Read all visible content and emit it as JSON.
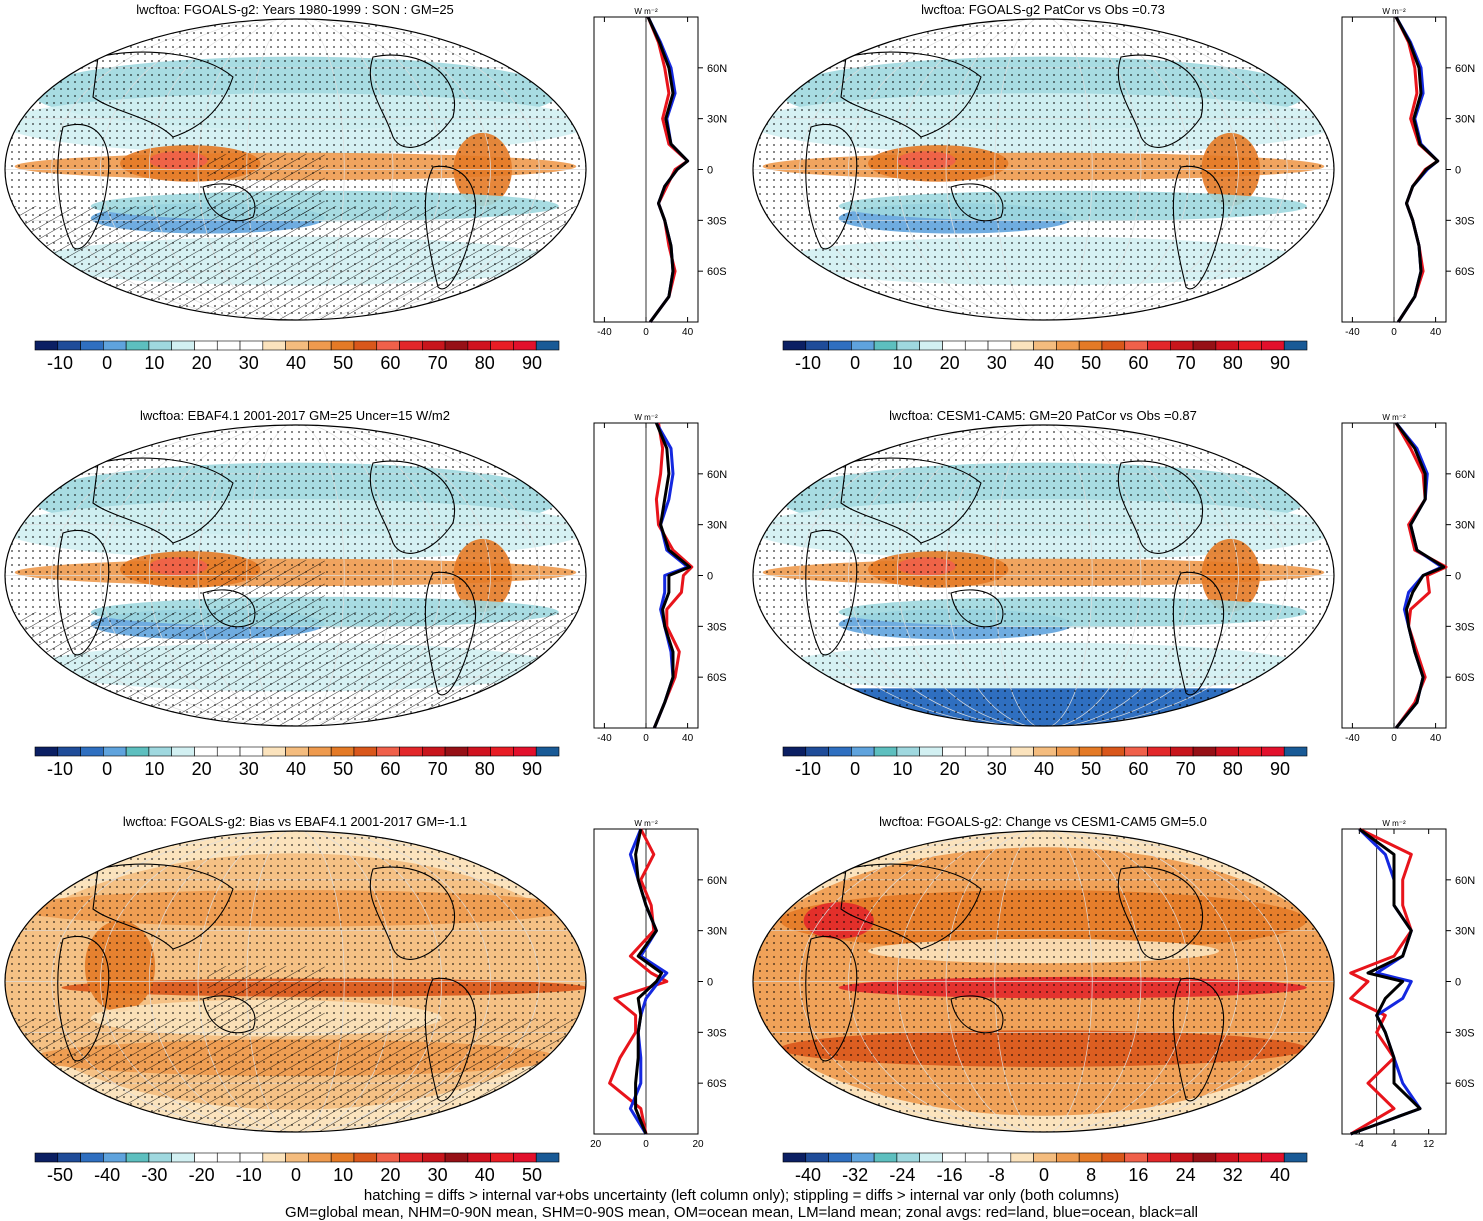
{
  "palettes": {
    "abs": [
      "#0b1f63",
      "#1f4c99",
      "#2f6fc0",
      "#5fa3dd",
      "#5dbfbf",
      "#9fd8df",
      "#d2f0f2",
      "#ffffff",
      "#ffffff",
      "#ffffff",
      "#fbe3bd",
      "#f4bc7e",
      "#ee9a4e",
      "#e47a26",
      "#d9571b",
      "#f0604a",
      "#e2272a",
      "#c8151c",
      "#961016",
      "#d0121f",
      "#e81d25",
      "#e2102c",
      "#195a96"
    ],
    "diff": [
      "#0b1f63",
      "#1f4c99",
      "#2f6fc0",
      "#5fa3dd",
      "#5dbfbf",
      "#9fd8df",
      "#d2f0f2",
      "#ffffff",
      "#ffffff",
      "#ffffff",
      "#fbe3bd",
      "#f4bc7e",
      "#ee9a4e",
      "#e47a26",
      "#d9571b",
      "#f0604a",
      "#e2272a",
      "#c8151c",
      "#961016",
      "#d0121f",
      "#e81d25",
      "#e2102c",
      "#195a96"
    ]
  },
  "line_colors": {
    "land": "#e8141b",
    "ocean": "#1428e0",
    "all": "#000000"
  },
  "zonal_unit": "W m⁻²",
  "lat_ticks": [
    "60N",
    "30N",
    "0",
    "30S",
    "60S"
  ],
  "footer": {
    "line1": "hatching = diffs > internal var+obs uncertainty (left column only); stippling = diffs > internal var only (both columns)",
    "line2": "GM=global mean, NHM=0-90N mean, SHM=0-90S mean, OM=ocean mean, LM=land mean; zonal avgs: red=land, blue=ocean, black=all"
  },
  "panels": [
    {
      "id": "p1",
      "title": "lwcftoa: FGOALS-g2: Years 1980-1999 : SON : GM=25",
      "map_type": "abs",
      "hatch": true,
      "colorbar_labels": [
        "-10",
        "0",
        "10",
        "20",
        "30",
        "40",
        "50",
        "60",
        "70",
        "80",
        "90"
      ],
      "zonal_ticks": [
        "-40",
        "0",
        "40"
      ]
    },
    {
      "id": "p2",
      "title": "lwcftoa: FGOALS-g2 PatCor vs Obs =0.73",
      "map_type": "abs",
      "hatch": false,
      "colorbar_labels": [
        "-10",
        "0",
        "10",
        "20",
        "30",
        "40",
        "50",
        "60",
        "70",
        "80",
        "90"
      ],
      "zonal_ticks": [
        "-40",
        "0",
        "40"
      ]
    },
    {
      "id": "p3",
      "title": "lwcftoa: EBAF4.1 2001-2017 GM=25 Uncer=15 W/m2",
      "map_type": "abs",
      "hatch": true,
      "colorbar_labels": [
        "-10",
        "0",
        "10",
        "20",
        "30",
        "40",
        "50",
        "60",
        "70",
        "80",
        "90"
      ],
      "zonal_ticks": [
        "-40",
        "0",
        "40"
      ]
    },
    {
      "id": "p4",
      "title": "lwcftoa: CESM1-CAM5: GM=20 PatCor vs Obs =0.87",
      "map_type": "abs",
      "hatch": false,
      "colorbar_labels": [
        "-10",
        "0",
        "10",
        "20",
        "30",
        "40",
        "50",
        "60",
        "70",
        "80",
        "90"
      ],
      "zonal_ticks": [
        "-40",
        "0",
        "40"
      ]
    },
    {
      "id": "p5",
      "title": "lwcftoa: FGOALS-g2: Bias vs EBAF4.1 2001-2017  GM=-1.1",
      "map_type": "bias",
      "hatch": true,
      "colorbar_labels": [
        "-50",
        "-40",
        "-30",
        "-20",
        "-10",
        "0",
        "10",
        "20",
        "30",
        "40",
        "50"
      ],
      "zonal_ticks": [
        "-20",
        "0",
        "20"
      ]
    },
    {
      "id": "p6",
      "title": "lwcftoa: FGOALS-g2: Change vs CESM1-CAM5 GM=5.0",
      "map_type": "change",
      "hatch": false,
      "colorbar_labels": [
        "-40",
        "-32",
        "-24",
        "-16",
        "-8",
        "0",
        "8",
        "16",
        "24",
        "32",
        "40"
      ],
      "zonal_ticks": [
        "-4",
        "4",
        "12"
      ]
    }
  ],
  "chart_data": [
    {
      "type": "heatmap",
      "title": "lwcftoa: FGOALS-g2: Years 1980-1999 : SON : GM=25",
      "colorbar": [
        -10,
        0,
        10,
        20,
        30,
        40,
        50,
        60,
        70,
        80,
        90
      ],
      "zonal_mean": {
        "xlim": [
          -50,
          50
        ],
        "lat": [
          90,
          75,
          60,
          45,
          30,
          15,
          5,
          0,
          -10,
          -20,
          -30,
          -45,
          -60,
          -75,
          -90
        ],
        "land": [
          2,
          12,
          18,
          22,
          16,
          22,
          40,
          28,
          20,
          12,
          18,
          22,
          28,
          22,
          4
        ],
        "ocean": [
          2,
          14,
          24,
          28,
          20,
          24,
          40,
          30,
          18,
          12,
          18,
          24,
          26,
          22,
          4
        ],
        "all": [
          2,
          13,
          22,
          26,
          19,
          24,
          40,
          30,
          18,
          12,
          18,
          24,
          26,
          22,
          4
        ]
      }
    },
    {
      "type": "heatmap",
      "title": "lwcftoa: FGOALS-g2 PatCor vs Obs =0.73",
      "colorbar": [
        -10,
        0,
        10,
        20,
        30,
        40,
        50,
        60,
        70,
        80,
        90
      ],
      "zonal_mean": {
        "xlim": [
          -50,
          50
        ],
        "lat": [
          90,
          75,
          60,
          45,
          30,
          15,
          5,
          0,
          -10,
          -20,
          -30,
          -45,
          -60,
          -75,
          -90
        ],
        "land": [
          2,
          14,
          20,
          22,
          16,
          24,
          42,
          30,
          18,
          12,
          18,
          24,
          28,
          20,
          4
        ],
        "ocean": [
          2,
          16,
          26,
          28,
          20,
          26,
          42,
          32,
          18,
          12,
          18,
          24,
          26,
          20,
          4
        ],
        "all": [
          2,
          15,
          24,
          26,
          19,
          25,
          42,
          31,
          18,
          12,
          18,
          24,
          26,
          20,
          4
        ]
      }
    },
    {
      "type": "heatmap",
      "title": "lwcftoa: EBAF4.1 2001-2017 GM=25 Uncer=15 W/m2",
      "colorbar": [
        -10,
        0,
        10,
        20,
        30,
        40,
        50,
        60,
        70,
        80,
        90
      ],
      "zonal_mean": {
        "xlim": [
          -50,
          50
        ],
        "lat": [
          90,
          75,
          60,
          45,
          30,
          15,
          5,
          0,
          -10,
          -20,
          -30,
          -45,
          -60,
          -75,
          -90
        ],
        "land": [
          12,
          16,
          14,
          10,
          12,
          26,
          44,
          36,
          34,
          20,
          20,
          32,
          28,
          18,
          8
        ],
        "ocean": [
          10,
          24,
          26,
          22,
          14,
          20,
          40,
          18,
          18,
          14,
          18,
          24,
          26,
          18,
          8
        ],
        "all": [
          10,
          20,
          22,
          18,
          14,
          22,
          42,
          22,
          22,
          16,
          18,
          26,
          26,
          18,
          8
        ]
      }
    },
    {
      "type": "heatmap",
      "title": "lwcftoa: CESM1-CAM5: GM=20 PatCor vs Obs =0.87",
      "colorbar": [
        -10,
        0,
        10,
        20,
        30,
        40,
        50,
        60,
        70,
        80,
        90
      ],
      "zonal_mean": {
        "xlim": [
          -50,
          50
        ],
        "lat": [
          90,
          75,
          60,
          45,
          30,
          15,
          5,
          0,
          -10,
          -20,
          -30,
          -45,
          -60,
          -75,
          -90
        ],
        "land": [
          2,
          16,
          28,
          30,
          14,
          20,
          50,
          32,
          34,
          16,
          14,
          22,
          30,
          20,
          2
        ],
        "ocean": [
          2,
          22,
          32,
          30,
          16,
          22,
          46,
          28,
          14,
          10,
          14,
          20,
          28,
          22,
          2
        ],
        "all": [
          2,
          20,
          30,
          30,
          16,
          22,
          48,
          28,
          18,
          12,
          14,
          20,
          28,
          22,
          2
        ]
      }
    },
    {
      "type": "heatmap",
      "title": "lwcftoa: FGOALS-g2: Bias vs EBAF4.1 2001-2017  GM=-1.1",
      "colorbar": [
        -50,
        -40,
        -30,
        -20,
        -10,
        0,
        10,
        20,
        30,
        40,
        50
      ],
      "zonal_mean": {
        "xlim": [
          -20,
          20
        ],
        "lat": [
          90,
          75,
          60,
          45,
          30,
          15,
          5,
          0,
          -10,
          -20,
          -30,
          -45,
          -60,
          -75,
          -90
        ],
        "land": [
          -2,
          3,
          -2,
          2,
          3,
          -6,
          2,
          8,
          -12,
          -4,
          -4,
          -10,
          -14,
          -2,
          0
        ],
        "ocean": [
          -2,
          -6,
          -3,
          0,
          4,
          -2,
          8,
          5,
          0,
          -2,
          -3,
          -2,
          -2,
          -6,
          0
        ],
        "all": [
          -2,
          -4,
          -3,
          0,
          4,
          -3,
          6,
          4,
          -3,
          -2,
          -3,
          -3,
          -4,
          -4,
          0
        ]
      }
    },
    {
      "type": "heatmap",
      "title": "lwcftoa: FGOALS-g2: Change vs CESM1-CAM5 GM=5.0",
      "colorbar": [
        -40,
        -32,
        -24,
        -16,
        -8,
        0,
        8,
        16,
        24,
        32,
        40
      ],
      "zonal_mean": {
        "xlim": [
          -8,
          16
        ],
        "lat": [
          90,
          75,
          60,
          45,
          30,
          15,
          5,
          0,
          -10,
          -20,
          -30,
          -45,
          -60,
          -75,
          -90
        ],
        "land": [
          -4,
          8,
          6,
          6,
          8,
          4,
          -6,
          -2,
          -6,
          2,
          0,
          4,
          -2,
          4,
          -6
        ],
        "ocean": [
          -4,
          2,
          4,
          4,
          8,
          6,
          0,
          8,
          6,
          0,
          2,
          4,
          6,
          10,
          -6
        ],
        "all": [
          -4,
          4,
          4,
          4,
          8,
          6,
          -2,
          6,
          2,
          0,
          2,
          4,
          4,
          10,
          -6
        ]
      }
    }
  ]
}
